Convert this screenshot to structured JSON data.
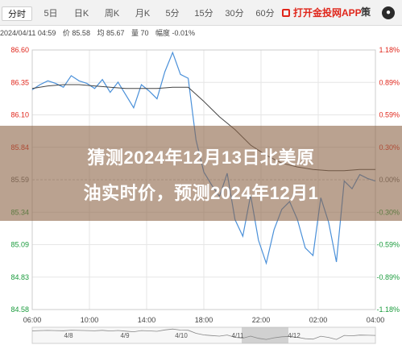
{
  "tabs": [
    {
      "label": "分时",
      "active": true
    },
    {
      "label": "5日",
      "active": false
    },
    {
      "label": "日K",
      "active": false
    },
    {
      "label": "周K",
      "active": false
    },
    {
      "label": "月K",
      "active": false
    },
    {
      "label": "5分",
      "active": false
    },
    {
      "label": "15分",
      "active": false
    },
    {
      "label": "30分",
      "active": false
    },
    {
      "label": "60分",
      "active": false
    }
  ],
  "app_link_label": "打开金投网APP",
  "more_label": "策",
  "more_icon": "circle-icon",
  "info": {
    "datetime": "2024/04/11 04:59",
    "current": "价 85.58",
    "average": "均 85.67",
    "volume": "量 70",
    "change": "幅度 -0.01%"
  },
  "overlay": {
    "line1": "猜测2024年12月13日北美原",
    "line2": "油实时价，预测2024年12月1"
  },
  "colors": {
    "price_line": "#4a90d9",
    "avg_line": "#444444",
    "up": "#e0261b",
    "down": "#1a9b3c",
    "grid": "#e6e6e6"
  },
  "chart_data": {
    "type": "line",
    "y_left_ticks": [
      "86.60",
      "86.35",
      "86.10",
      "85.84",
      "85.59",
      "85.34",
      "85.09",
      "84.83",
      "84.58"
    ],
    "y_right_ticks": [
      "1.18%",
      "0.89%",
      "0.59%",
      "0.30%",
      "0.00%",
      "-0.30%",
      "-0.59%",
      "-0.89%",
      "-1.18%"
    ],
    "ylim": [
      84.58,
      86.6
    ],
    "x_ticks": [
      "06:00",
      "10:00",
      "14:00",
      "18:00",
      "22:00",
      "02:00",
      "04:00"
    ],
    "x_range": [
      0,
      22
    ],
    "bottom_dates": [
      "4/8",
      "4/9",
      "4/10",
      "4/11",
      "4/12"
    ],
    "series": [
      {
        "x": [
          0.0,
          0.5,
          1.0,
          1.5,
          2.0,
          2.5,
          3.0,
          3.5,
          4.0,
          4.5,
          5.0,
          5.5,
          6.0,
          6.5,
          7.0,
          7.5,
          8.0,
          8.5,
          9.0,
          9.5,
          10.0,
          10.5,
          11.0,
          11.5,
          12.0,
          12.5,
          13.0,
          13.5,
          14.0,
          14.5,
          15.0,
          15.5,
          16.0,
          16.5,
          17.0,
          17.5,
          18.0,
          18.5,
          19.0,
          19.5,
          20.0,
          20.5,
          21.0,
          21.5,
          22.0
        ],
        "y": [
          86.29,
          86.33,
          86.36,
          86.34,
          86.31,
          86.4,
          86.36,
          86.34,
          86.3,
          86.37,
          86.27,
          86.35,
          86.25,
          86.15,
          86.33,
          86.28,
          86.22,
          86.43,
          86.58,
          86.41,
          86.38,
          85.9,
          85.65,
          85.55,
          85.46,
          85.64,
          85.28,
          85.15,
          85.47,
          85.12,
          84.94,
          85.2,
          85.36,
          85.42,
          85.28,
          85.06,
          85.0,
          85.45,
          85.26,
          84.95,
          85.58,
          85.52,
          85.63,
          85.6,
          85.58
        ]
      },
      {
        "x": [
          0.0,
          1.0,
          2.0,
          3.0,
          4.0,
          5.0,
          6.0,
          7.0,
          8.0,
          9.0,
          10.0,
          11.0,
          12.0,
          13.0,
          14.0,
          15.0,
          16.0,
          17.0,
          18.0,
          19.0,
          20.0,
          21.0,
          22.0
        ],
        "y": [
          86.3,
          86.32,
          86.33,
          86.33,
          86.32,
          86.31,
          86.3,
          86.3,
          86.3,
          86.31,
          86.31,
          86.2,
          86.08,
          85.98,
          85.86,
          85.78,
          85.72,
          85.69,
          85.67,
          85.66,
          85.66,
          85.67,
          85.67
        ]
      }
    ]
  }
}
